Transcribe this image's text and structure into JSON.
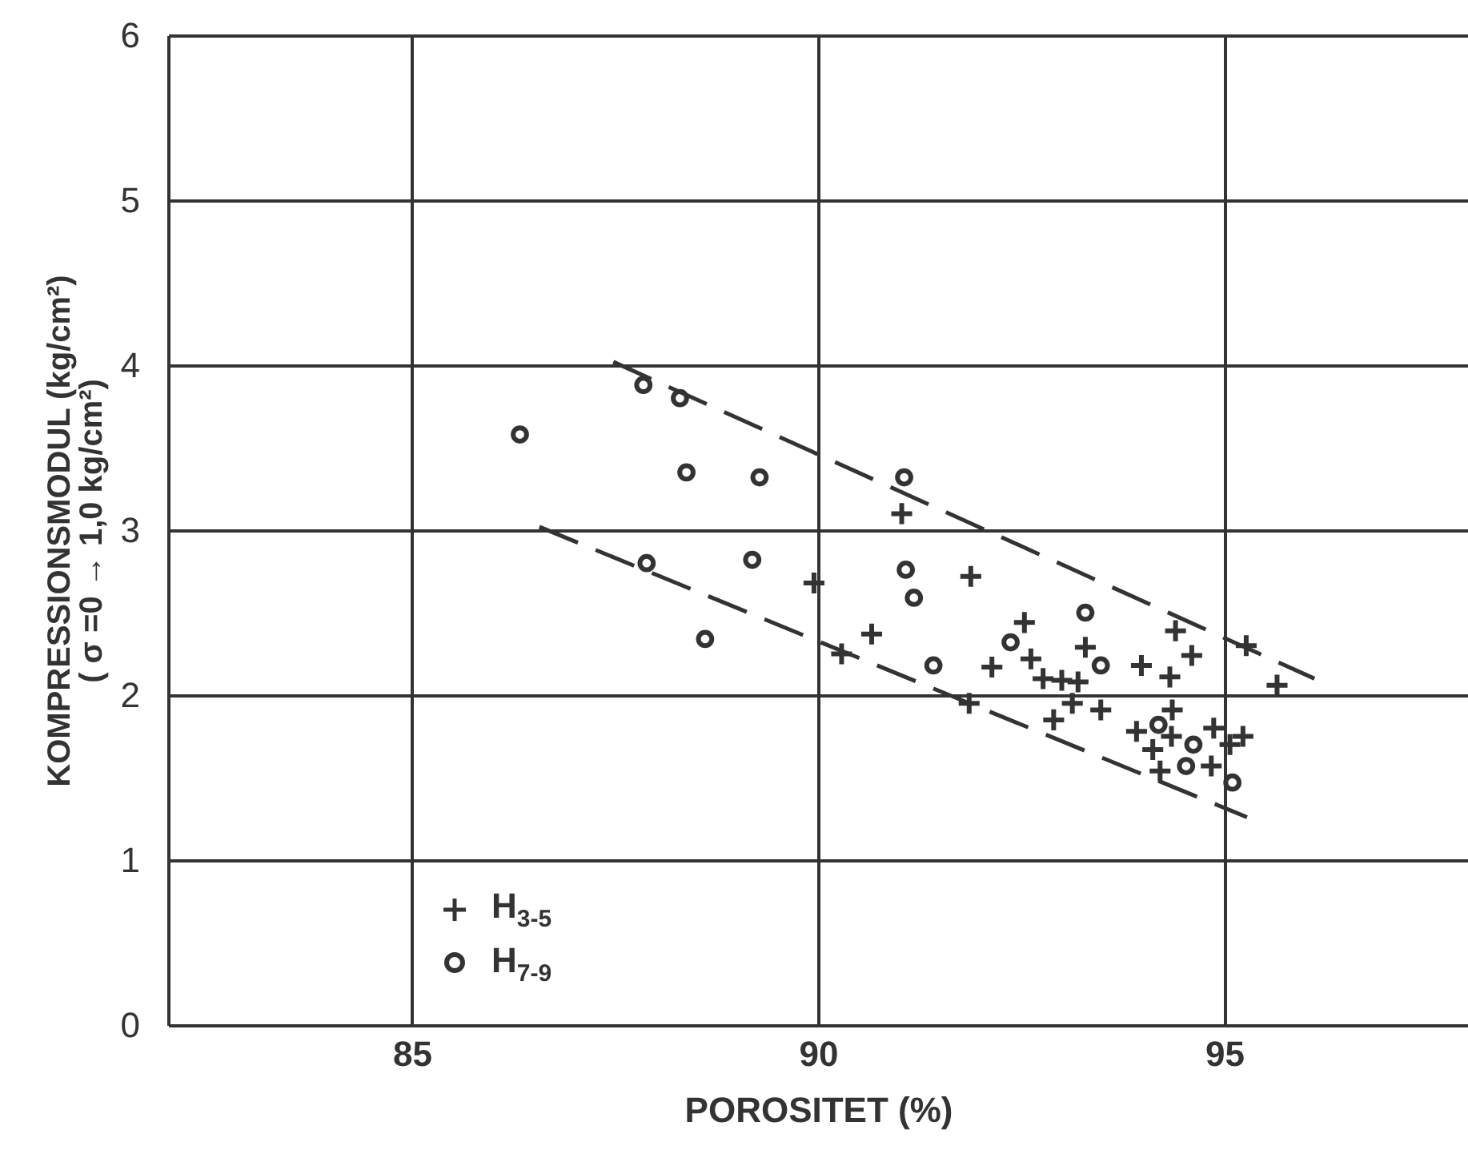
{
  "chart_data": {
    "type": "scatter",
    "xlabel": "POROSITET (%)",
    "ylabel": [
      "KOMPRESSIONSMODUL (kg/cm²)",
      "( σ =0 → 1,0 kg/cm²)"
    ],
    "xlim": [
      82,
      98
    ],
    "xticks": [
      85,
      90,
      95
    ],
    "ylim": [
      0,
      6
    ],
    "yticks": [
      0,
      1,
      2,
      3,
      4,
      5,
      6
    ],
    "grid": true,
    "legend": "bottom left",
    "series": [
      {
        "name": "H$_{3-5}$",
        "color": "#333333",
        "marker": "cross",
        "x": [
          91.03,
          89.95,
          91.88,
          90.66,
          90.29,
          92.54,
          92.62,
          92.14,
          92.77,
          93.0,
          93.2,
          93.29,
          93.13,
          93.48,
          92.9,
          91.86,
          93.98,
          94.33,
          94.4,
          94.6,
          95.27,
          95.65,
          94.36,
          93.92,
          94.12,
          94.21,
          94.35,
          94.87,
          94.84,
          95.23,
          95.07
        ],
        "values": [
          3.1,
          2.68,
          2.72,
          2.37,
          2.25,
          2.44,
          2.22,
          2.17,
          2.1,
          2.09,
          2.08,
          2.29,
          1.95,
          1.91,
          1.85,
          1.95,
          2.18,
          2.11,
          2.39,
          2.24,
          2.3,
          2.06,
          1.91,
          1.78,
          1.67,
          1.54,
          1.75,
          1.8,
          1.57,
          1.75,
          1.7
        ]
      },
      {
        "name": "H$_{7-9}$",
        "color": "#333333",
        "marker": "circle",
        "x": [
          86.33,
          87.85,
          88.3,
          88.38,
          89.28,
          91.06,
          87.89,
          89.19,
          91.08,
          91.18,
          88.61,
          91.42,
          92.37,
          93.29,
          93.48,
          94.19,
          94.62,
          94.53,
          95.1
        ],
        "values": [
          3.58,
          3.88,
          3.8,
          3.35,
          3.32,
          3.32,
          2.8,
          2.82,
          2.76,
          2.59,
          2.34,
          2.18,
          2.32,
          2.5,
          2.18,
          1.82,
          1.7,
          1.57,
          1.47
        ]
      },
      {
        "type": "line",
        "color": "#333333",
        "marker": "none",
        "line_style": "dashed",
        "x": [
          87.48,
          96.11
        ],
        "values": [
          4.02,
          2.1
        ]
      },
      {
        "type": "line",
        "color": "#333333",
        "marker": "none",
        "line_style": "dashed",
        "x": [
          86.57,
          95.28
        ],
        "values": [
          3.02,
          1.26
        ]
      }
    ]
  }
}
